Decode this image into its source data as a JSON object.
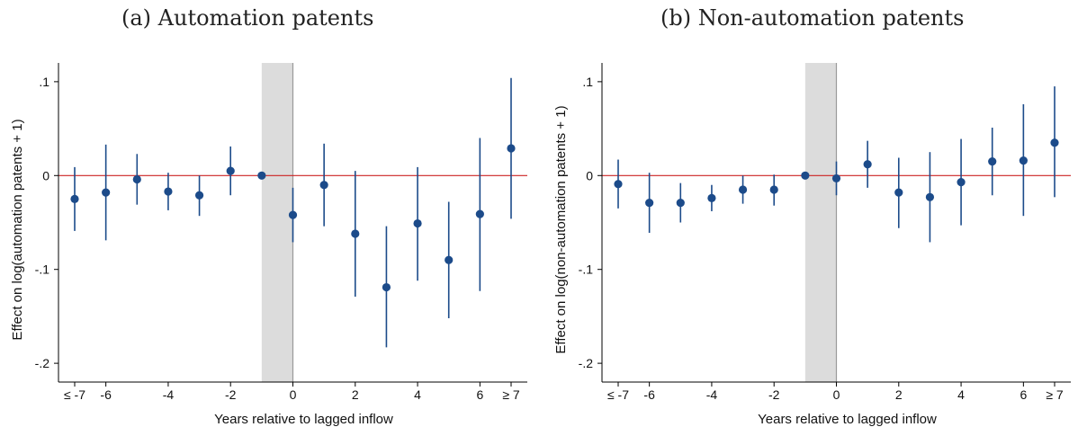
{
  "titles": [
    "(a) Automation patents",
    "(b) Non-automation patents"
  ],
  "chart_data": [
    {
      "type": "scatter",
      "title": "(a) Automation patents",
      "xlabel": "Years relative to lagged inflow",
      "ylabel": "Effect on log(automation patents + 1)",
      "x_tick_labels": [
        "≤ -7",
        "-6",
        "-4",
        "-2",
        "0",
        "2",
        "4",
        "6",
        "≥ 7"
      ],
      "x_tick_values": [
        -7,
        -6,
        -4,
        -2,
        0,
        2,
        4,
        6,
        7
      ],
      "y_tick_labels": [
        ".1",
        "0",
        "-.1",
        "-.2"
      ],
      "y_tick_values": [
        0.1,
        0,
        -0.1,
        -0.2
      ],
      "xlim": [
        -7.5,
        7.5
      ],
      "ylim": [
        -0.22,
        0.12
      ],
      "shaded_interval": [
        -1,
        0
      ],
      "reference_line": 0,
      "series": [
        {
          "x": [
            -7,
            -6,
            -5,
            -4,
            -3,
            -2,
            -1,
            0,
            1,
            2,
            3,
            4,
            5,
            6,
            7
          ],
          "y": [
            -0.025,
            -0.018,
            -0.004,
            -0.017,
            -0.021,
            0.005,
            0.0,
            -0.042,
            -0.01,
            -0.062,
            -0.119,
            -0.051,
            -0.09,
            -0.041,
            0.029
          ],
          "ci_low": [
            -0.059,
            -0.069,
            -0.031,
            -0.037,
            -0.043,
            -0.021,
            0.0,
            -0.071,
            -0.054,
            -0.129,
            -0.183,
            -0.112,
            -0.152,
            -0.123,
            -0.046
          ],
          "ci_high": [
            0.009,
            0.033,
            0.023,
            0.003,
            0.0,
            0.031,
            0.0,
            -0.013,
            0.034,
            0.005,
            -0.054,
            0.009,
            -0.028,
            0.04,
            0.104
          ]
        }
      ],
      "colors": {
        "marker": "#1c4b8a",
        "reference": "#cc2222",
        "shade": "#dcdcdc"
      }
    },
    {
      "type": "scatter",
      "title": "(b) Non-automation patents",
      "xlabel": "Years relative to lagged inflow",
      "ylabel": "Effect on log(non-automation patents + 1)",
      "x_tick_labels": [
        "≤ -7",
        "-6",
        "-4",
        "-2",
        "0",
        "2",
        "4",
        "6",
        "≥ 7"
      ],
      "x_tick_values": [
        -7,
        -6,
        -4,
        -2,
        0,
        2,
        4,
        6,
        7
      ],
      "y_tick_labels": [
        ".1",
        "0",
        "-.1",
        "-.2"
      ],
      "y_tick_values": [
        0.1,
        0,
        -0.1,
        -0.2
      ],
      "xlim": [
        -7.5,
        7.5
      ],
      "ylim": [
        -0.22,
        0.12
      ],
      "shaded_interval": [
        -1,
        0
      ],
      "reference_line": 0,
      "series": [
        {
          "x": [
            -7,
            -6,
            -5,
            -4,
            -3,
            -2,
            -1,
            0,
            1,
            2,
            3,
            4,
            5,
            6,
            7
          ],
          "y": [
            -0.009,
            -0.029,
            -0.029,
            -0.024,
            -0.015,
            -0.015,
            0.0,
            -0.003,
            0.012,
            -0.018,
            -0.023,
            -0.007,
            0.015,
            0.016,
            0.035
          ],
          "ci_low": [
            -0.035,
            -0.061,
            -0.05,
            -0.038,
            -0.03,
            -0.032,
            0.0,
            -0.021,
            -0.013,
            -0.056,
            -0.071,
            -0.053,
            -0.021,
            -0.043,
            -0.023
          ],
          "ci_high": [
            0.017,
            0.003,
            -0.008,
            -0.01,
            0.0,
            0.001,
            0.0,
            0.015,
            0.037,
            0.019,
            0.025,
            0.039,
            0.051,
            0.076,
            0.095
          ]
        }
      ],
      "colors": {
        "marker": "#1c4b8a",
        "reference": "#cc2222",
        "shade": "#dcdcdc"
      }
    }
  ]
}
